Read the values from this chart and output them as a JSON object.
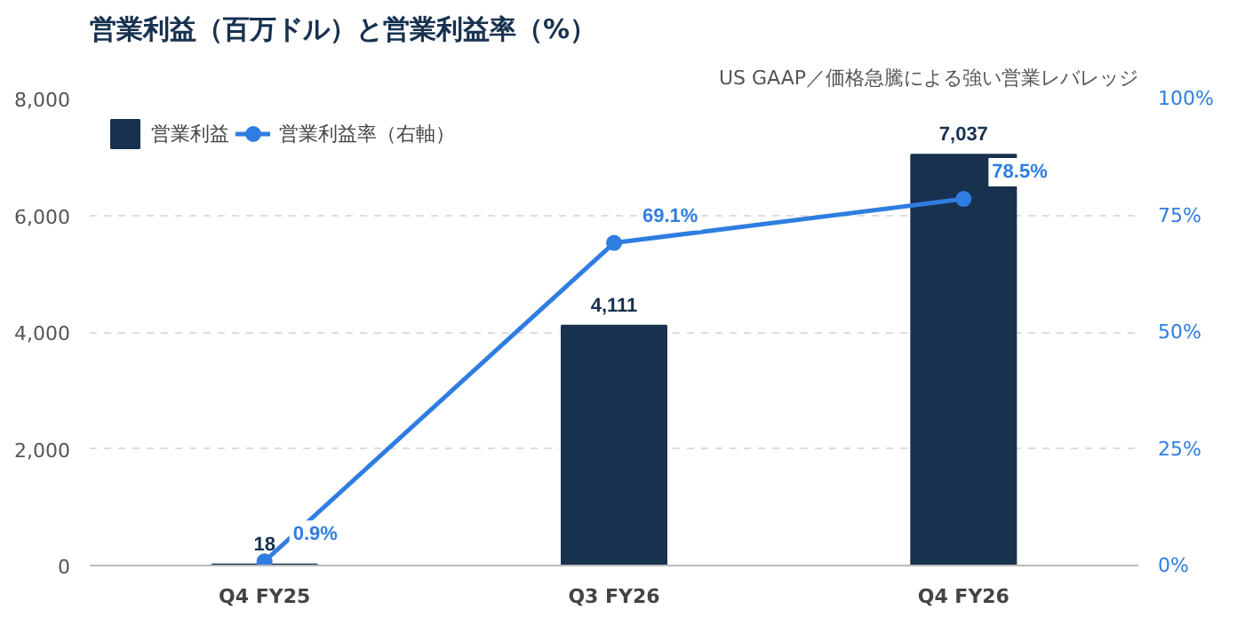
{
  "chart_data": {
    "type": "bar",
    "title": "営業利益（百万ドル）と営業利益率（%）",
    "annotations": [
      "US GAAP／価格急騰による強い営業レバレッジ"
    ],
    "categories": [
      "Q4 FY25",
      "Q3 FY26",
      "Q4 FY26"
    ],
    "series": [
      {
        "name": "営業利益",
        "color": "#17314f",
        "values": [
          18,
          4111,
          7037
        ],
        "value_labels": [
          "18",
          "4,111",
          "7,037"
        ]
      },
      {
        "name": "営業利益率（右軸）",
        "type": "line",
        "axis": "y2",
        "color": "#2f7de1",
        "marker": "circle",
        "values": [
          0.9,
          69.1,
          78.5
        ],
        "value_labels": [
          "0.9%",
          "69.1%",
          "78.5%"
        ]
      }
    ],
    "ylim": [
      0,
      8000
    ],
    "yticks": [
      0,
      {
        "value": 2000,
        "label": "2,000"
      },
      {
        "value": 4000,
        "label": "4,000"
      },
      {
        "value": 6000,
        "label": "6,000"
      },
      {
        "value": 8000,
        "label": "8,000"
      }
    ],
    "y2lim": [
      0,
      100
    ],
    "y2ticks": [
      {
        "value": 0,
        "label": "0%"
      },
      {
        "value": 25,
        "label": "25%"
      },
      {
        "value": 50,
        "label": "50%"
      },
      {
        "value": 75,
        "label": "75%"
      },
      {
        "value": 100,
        "label": "100%"
      }
    ],
    "grid": "y",
    "legend": "top left"
  }
}
